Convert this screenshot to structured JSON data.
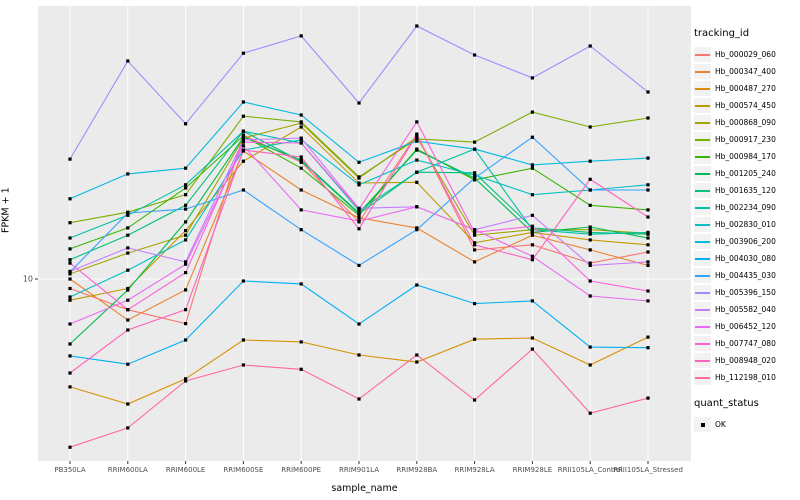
{
  "chart_data": {
    "type": "line",
    "xlabel": "sample_name",
    "ylabel": "FPKM + 1",
    "y_scale": "log10",
    "y_ticks": [
      10
    ],
    "grid": "on",
    "panel_background": "#EBEBEB",
    "gridline_color": "#FFFFFF",
    "marker": "square",
    "marker_color": "#000000",
    "legend": {
      "title": "tracking_id",
      "position": "right"
    },
    "legend2": {
      "title": "quant_status",
      "items": [
        {
          "label": "OK",
          "marker": "black-square"
        }
      ]
    },
    "categories": [
      "PB350LA",
      "RRIM600LA",
      "RRIM600LE",
      "RRIM600SE",
      "RRIM600PE",
      "RRIM901LA",
      "RRIM928BA",
      "RRIM928LA",
      "RRIM928LE",
      "RRII105LA_Control",
      "RRII105LA_Stressed"
    ],
    "series": [
      {
        "name": "Hb_000029_060",
        "color": "#F8766D",
        "values": [
          9.3,
          7.9,
          7.1,
          30.2,
          24.5,
          15.5,
          30.4,
          12.5,
          13.0,
          11.3,
          12.3
        ]
      },
      {
        "name": "Hb_000347_400",
        "color": "#EA8331",
        "values": [
          10.0,
          7.3,
          9.2,
          26.7,
          19.8,
          16.0,
          14.8,
          11.4,
          14.0,
          12.5,
          11.1
        ]
      },
      {
        "name": "Hb_000487_270",
        "color": "#D89000",
        "values": [
          4.37,
          3.83,
          4.65,
          6.26,
          6.17,
          5.58,
          5.29,
          6.3,
          6.36,
          5.17,
          6.4
        ]
      },
      {
        "name": "Hb_000574_450",
        "color": "#C09B00",
        "values": [
          8.5,
          9.3,
          14.5,
          24.7,
          32.1,
          20.9,
          21.0,
          13.2,
          14.3,
          13.5,
          13.0
        ]
      },
      {
        "name": "Hb_000868_090",
        "color": "#A3A500",
        "values": [
          10.4,
          12.2,
          14.0,
          29.5,
          33.1,
          21.7,
          29.7,
          14.0,
          14.6,
          14.6,
          14.2
        ]
      },
      {
        "name": "Hb_000917_230",
        "color": "#7CAE00",
        "values": [
          15.4,
          16.7,
          19.1,
          34.9,
          33.4,
          21.9,
          29.3,
          28.6,
          36.0,
          32.1,
          34.4
        ]
      },
      {
        "name": "Hb_000984_170",
        "color": "#39B600",
        "values": [
          12.6,
          14.8,
          20.1,
          30.0,
          23.4,
          16.3,
          27.1,
          21.4,
          23.4,
          17.6,
          17.0
        ]
      },
      {
        "name": "Hb_001205_240",
        "color": "#00BB4E",
        "values": [
          6.07,
          9.19,
          15.5,
          29.7,
          24.9,
          16.6,
          26.9,
          21.7,
          14.3,
          14.9,
          13.7
        ]
      },
      {
        "name": "Hb_001635_120",
        "color": "#00BF7D",
        "values": [
          11.6,
          14.0,
          17.6,
          31.1,
          24.7,
          16.5,
          22.7,
          22.6,
          14.8,
          14.3,
          14.1
        ]
      },
      {
        "name": "Hb_002234_090",
        "color": "#00C1A3",
        "values": [
          13.7,
          16.3,
          20.6,
          31.1,
          28.4,
          16.9,
          22.7,
          27.1,
          14.6,
          14.1,
          14.3
        ]
      },
      {
        "name": "Hb_002830_010",
        "color": "#00BFC4",
        "values": [
          8.71,
          10.7,
          13.5,
          26.9,
          29.1,
          20.6,
          24.9,
          22.2,
          19.1,
          19.8,
          20.6
        ]
      },
      {
        "name": "Hb_003906_200",
        "color": "#00BAE0",
        "values": [
          18.5,
          22.4,
          23.4,
          38.9,
          35.2,
          24.5,
          28.8,
          27.1,
          24.0,
          24.7,
          25.3
        ]
      },
      {
        "name": "Hb_004030_080",
        "color": "#00B0F6",
        "values": [
          5.54,
          5.2,
          6.26,
          9.85,
          9.63,
          7.08,
          9.55,
          8.28,
          8.45,
          5.93,
          5.9
        ]
      },
      {
        "name": "Hb_004435_030",
        "color": "#35A2FF",
        "values": [
          10.55,
          16.6,
          17.1,
          19.8,
          14.6,
          11.1,
          14.6,
          21.7,
          29.7,
          19.8,
          19.8
        ]
      },
      {
        "name": "Hb_005396_150",
        "color": "#9590FF",
        "values": [
          25.1,
          53.3,
          32.9,
          56.6,
          64.6,
          38.6,
          69.7,
          55.8,
          46.8,
          59.8,
          42.0
        ]
      },
      {
        "name": "Hb_005582_040",
        "color": "#C77CFF",
        "values": [
          10.6,
          12.7,
          11.4,
          29.1,
          29.5,
          17.2,
          17.4,
          14.6,
          16.3,
          11.1,
          11.4
        ]
      },
      {
        "name": "Hb_006452_120",
        "color": "#E76BF3",
        "values": [
          7.08,
          8.5,
          11.2,
          27.8,
          17.0,
          15.6,
          17.4,
          14.6,
          11.9,
          8.78,
          8.45
        ]
      },
      {
        "name": "Hb_007747_080",
        "color": "#FA62DB",
        "values": [
          11.3,
          7.9,
          10.5,
          28.6,
          28.4,
          17.1,
          33.4,
          14.3,
          15.0,
          9.85,
          9.12
        ]
      },
      {
        "name": "Hb_008948_020",
        "color": "#FF62BC",
        "values": [
          4.86,
          6.76,
          7.9,
          26.9,
          25.5,
          14.7,
          30.2,
          13.0,
          11.6,
          21.5,
          16.1
        ]
      },
      {
        "name": "Hb_112198_010",
        "color": "#FF6A98",
        "values": [
          2.75,
          3.19,
          4.57,
          5.17,
          5.0,
          3.98,
          5.58,
          3.95,
          5.84,
          3.57,
          4.01
        ]
      }
    ]
  }
}
